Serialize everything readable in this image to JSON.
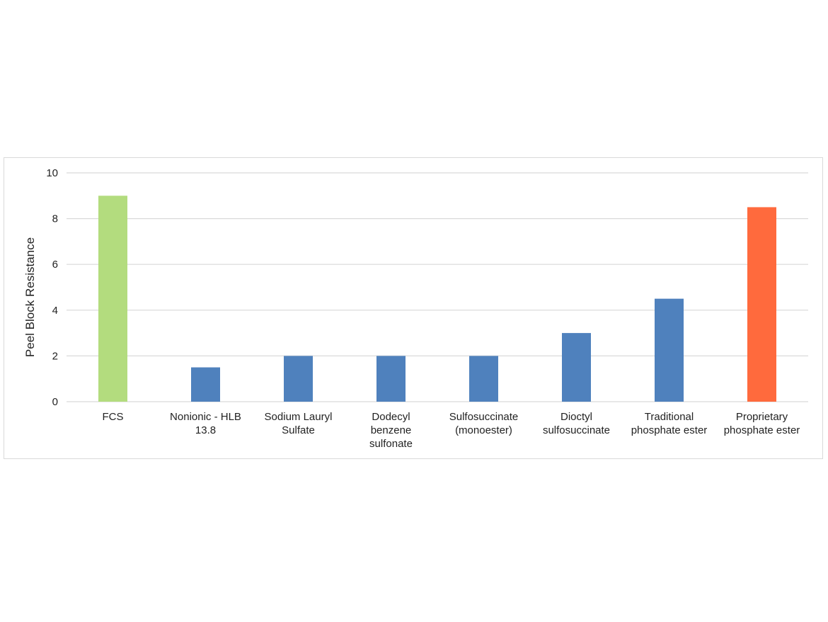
{
  "chart_data": {
    "type": "bar",
    "title": "",
    "xlabel": "",
    "ylabel": "Peel Block Resistance",
    "ylim": [
      0,
      10
    ],
    "yticks": [
      0,
      2,
      4,
      6,
      8,
      10
    ],
    "grid": true,
    "legend": "none",
    "categories": [
      [
        "FCS"
      ],
      [
        "Nonionic - HLB",
        "13.8"
      ],
      [
        "Sodium Lauryl",
        "Sulfate"
      ],
      [
        "Dodecyl",
        "benzene",
        "sulfonate"
      ],
      [
        "Sulfosuccinate",
        "(monoester)"
      ],
      [
        "Dioctyl",
        "sulfosuccinate"
      ],
      [
        "Traditional",
        "phosphate ester"
      ],
      [
        "Proprietary",
        "phosphate ester"
      ]
    ],
    "values": [
      9,
      1.5,
      2,
      2,
      2,
      3,
      4.5,
      8.5
    ],
    "bar_colors": [
      "#b3dc7e",
      "#4f81bd",
      "#4f81bd",
      "#4f81bd",
      "#4f81bd",
      "#4f81bd",
      "#4f81bd",
      "#ff6a3d"
    ]
  }
}
